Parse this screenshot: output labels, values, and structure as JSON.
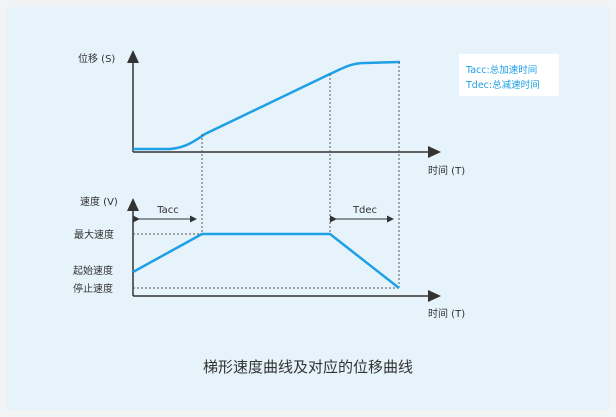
{
  "top_chart": {
    "y_axis_label": "位移 (S)",
    "x_axis_label": "时间 (T)"
  },
  "bottom_chart": {
    "y_axis_label": "速度 (V)",
    "x_axis_label": "时间 (T)",
    "level_max_label": "最大速度",
    "level_start_label": "起始速度",
    "level_stop_label": "停止速度",
    "tacc_label": "Tacc",
    "tdec_label": "Tdec"
  },
  "legend": {
    "tacc_text": "Tacc:总加速时间",
    "tdec_text": "Tdec:总减速时间"
  },
  "caption": "梯形速度曲线及对应的位移曲线",
  "colors": {
    "curve": "#1ea0e6",
    "axis": "#333333",
    "guide": "#555555",
    "background": "#e6f3fb"
  }
}
